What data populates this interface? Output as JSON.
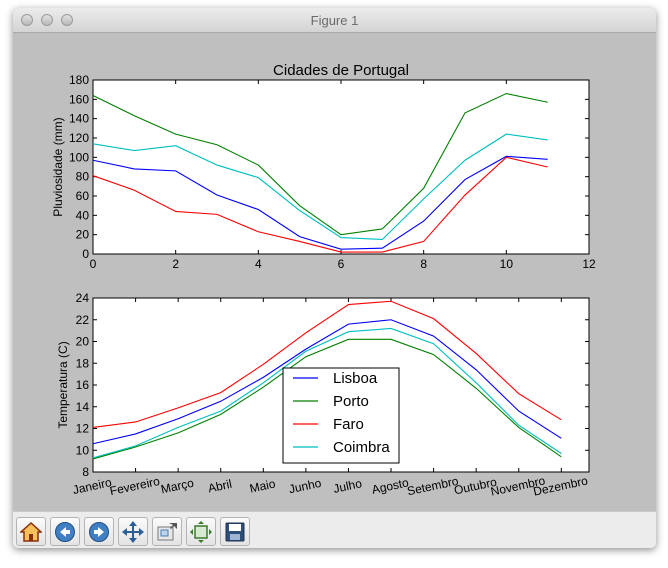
{
  "window": {
    "title": "Figure 1"
  },
  "toolbar": {
    "buttons": [
      {
        "name": "home",
        "icon": "home-icon"
      },
      {
        "name": "back",
        "icon": "back-arrow-icon"
      },
      {
        "name": "forward",
        "icon": "forward-arrow-icon"
      },
      {
        "name": "pan",
        "icon": "pan-arrows-icon"
      },
      {
        "name": "zoom",
        "icon": "zoom-rect-icon"
      },
      {
        "name": "subplots",
        "icon": "subplots-config-icon"
      },
      {
        "name": "save",
        "icon": "save-floppy-icon"
      }
    ]
  },
  "colors": {
    "Lisboa": "#0000ff",
    "Porto": "#008000",
    "Faro": "#ff0000",
    "Coimbra": "#00bfbf"
  },
  "chart_data": [
    {
      "type": "line",
      "title": "Cidades de Portugal",
      "xlabel": "",
      "ylabel": "Pluviosidade (mm)",
      "xlim": [
        0,
        12
      ],
      "ylim": [
        0,
        180
      ],
      "xticks": [
        "0",
        "2",
        "4",
        "6",
        "8",
        "10",
        "12"
      ],
      "yticks": [
        "0",
        "20",
        "40",
        "60",
        "80",
        "100",
        "120",
        "140",
        "160",
        "180"
      ],
      "x": [
        0,
        1,
        2,
        3,
        4,
        5,
        6,
        7,
        8,
        9,
        10,
        11
      ],
      "series": [
        {
          "name": "Lisboa",
          "values": [
            97,
            88,
            86,
            61,
            46,
            18,
            5,
            6,
            34,
            77,
            101,
            98
          ]
        },
        {
          "name": "Porto",
          "values": [
            164,
            143,
            124,
            113,
            92,
            50,
            20,
            26,
            68,
            146,
            166,
            157
          ]
        },
        {
          "name": "Faro",
          "values": [
            81,
            66,
            44,
            41,
            23,
            13,
            2,
            2,
            13,
            61,
            100,
            90
          ]
        },
        {
          "name": "Coimbra",
          "values": [
            114,
            107,
            112,
            92,
            79,
            45,
            17,
            15,
            57,
            97,
            124,
            118
          ]
        }
      ]
    },
    {
      "type": "line",
      "title": "",
      "xlabel": "",
      "ylabel": "Temperatura (C)",
      "ylim": [
        8,
        24
      ],
      "yticks": [
        "8",
        "10",
        "12",
        "14",
        "16",
        "18",
        "20",
        "22",
        "24"
      ],
      "categories": [
        "Janeiro",
        "Fevereiro",
        "Março",
        "Abril",
        "Maio",
        "Junho",
        "Julho",
        "Agosto",
        "Setembro",
        "Outubro",
        "Novembro",
        "Dezembro"
      ],
      "legend_position": "lower center",
      "series": [
        {
          "name": "Lisboa",
          "values": [
            10.6,
            11.5,
            12.9,
            14.5,
            16.7,
            19.3,
            21.6,
            22.0,
            20.5,
            17.4,
            13.6,
            11.1
          ]
        },
        {
          "name": "Porto",
          "values": [
            9.2,
            10.3,
            11.6,
            13.3,
            15.8,
            18.6,
            20.2,
            20.2,
            18.8,
            15.7,
            12.1,
            9.4
          ]
        },
        {
          "name": "Faro",
          "values": [
            12.1,
            12.6,
            13.9,
            15.3,
            17.9,
            20.8,
            23.4,
            23.7,
            22.1,
            18.9,
            15.2,
            12.8
          ]
        },
        {
          "name": "Coimbra",
          "values": [
            9.3,
            10.4,
            12.1,
            13.6,
            16.2,
            19.1,
            20.9,
            21.2,
            19.8,
            16.2,
            12.3,
            9.7
          ]
        }
      ]
    }
  ]
}
